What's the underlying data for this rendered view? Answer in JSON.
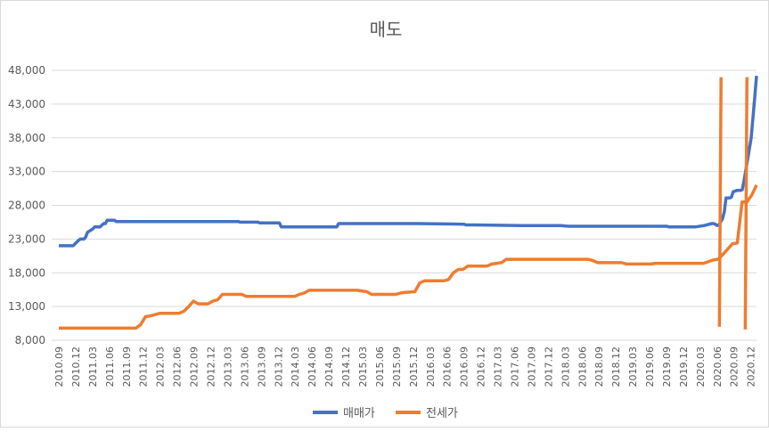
{
  "chart_data": {
    "type": "line",
    "title": "매도",
    "xlabel": "",
    "ylabel": "",
    "ylim": [
      8000,
      48000
    ],
    "yticks": [
      8000,
      13000,
      18000,
      23000,
      28000,
      33000,
      38000,
      43000,
      48000
    ],
    "ytick_labels": [
      "8,000",
      "13,000",
      "18,000",
      "23,000",
      "28,000",
      "33,000",
      "38,000",
      "43,000",
      "48,000"
    ],
    "x_start": "2010.09",
    "x_count": 125,
    "xtick_labels": [
      "2010.09",
      "2010.12",
      "2011.03",
      "2011.06",
      "2011.09",
      "2011.12",
      "2012.03",
      "2012.06",
      "2012.09",
      "2012.12",
      "2013.03",
      "2013.06",
      "2013.09",
      "2013.12",
      "2014.03",
      "2014.06",
      "2014.09",
      "2014.12",
      "2015.03",
      "2015.06",
      "2015.09",
      "2015.12",
      "2016.03",
      "2016.06",
      "2016.09",
      "2016.12",
      "2017.03",
      "2017.06",
      "2017.09",
      "2017.12",
      "2018.03",
      "2018.06",
      "2018.09",
      "2018.12",
      "2019.03",
      "2019.06",
      "2019.09",
      "2019.12",
      "2020.03",
      "2020.06",
      "2020.09",
      "2020.12"
    ],
    "legend": [
      "매매가",
      "전세가"
    ],
    "legend_position": "bottom",
    "grid": true,
    "series": [
      {
        "name": "매매가",
        "color": "#4472C4",
        "points": [
          [
            0,
            22000
          ],
          [
            8,
            22000
          ],
          [
            11,
            22800
          ],
          [
            12,
            23000
          ],
          [
            14,
            23000
          ],
          [
            15,
            23300
          ],
          [
            16,
            24000
          ],
          [
            19,
            24500
          ],
          [
            20,
            24800
          ],
          [
            23,
            24800
          ],
          [
            25,
            25300
          ],
          [
            26,
            25300
          ],
          [
            27,
            25800
          ],
          [
            31,
            25800
          ],
          [
            32,
            25600
          ],
          [
            100,
            25600
          ],
          [
            101,
            25500
          ],
          [
            103,
            25500
          ],
          [
            108,
            25500
          ],
          [
            111,
            25500
          ],
          [
            112,
            25400
          ],
          [
            123,
            25400
          ],
          [
            124,
            24800
          ],
          [
            130,
            24800
          ],
          [
            155,
            24800
          ],
          [
            156,
            25300
          ],
          [
            167,
            25300
          ],
          [
            200,
            25300
          ],
          [
            226,
            25200
          ],
          [
            227,
            25100
          ],
          [
            231,
            25100
          ],
          [
            258,
            25000
          ],
          [
            270,
            25000
          ],
          [
            280,
            25000
          ],
          [
            284,
            24900
          ],
          [
            300,
            24900
          ],
          [
            339,
            24900
          ],
          [
            340,
            24800
          ],
          [
            350,
            24800
          ],
          [
            355,
            24800
          ],
          [
            360,
            25000
          ],
          [
            364,
            25300
          ],
          [
            365,
            25300
          ],
          [
            366,
            25200
          ],
          [
            367,
            25000
          ],
          [
            368,
            25100
          ],
          [
            370,
            26000
          ],
          [
            371,
            27000
          ],
          [
            372,
            29100
          ],
          [
            374,
            29100
          ],
          [
            375,
            29200
          ],
          [
            376,
            30000
          ],
          [
            378,
            30200
          ],
          [
            379,
            30200
          ],
          [
            380,
            30200
          ],
          [
            381,
            30300
          ],
          [
            382,
            31600
          ],
          [
            384,
            34700
          ],
          [
            386,
            38000
          ],
          [
            388,
            44000
          ],
          [
            389,
            47200
          ]
        ]
      },
      {
        "name": "전세가",
        "color": "#ED7D31",
        "points": [
          [
            0,
            9800
          ],
          [
            16,
            9800
          ],
          [
            17,
            10300
          ],
          [
            18,
            11500
          ],
          [
            19,
            11600
          ],
          [
            20,
            11800
          ],
          [
            21,
            12000
          ],
          [
            25,
            12000
          ],
          [
            26,
            12300
          ],
          [
            27,
            13000
          ],
          [
            28,
            13800
          ],
          [
            29,
            13400
          ],
          [
            30,
            13400
          ],
          [
            31,
            13400
          ],
          [
            32,
            13800
          ],
          [
            33,
            14000
          ],
          [
            34,
            14800
          ],
          [
            38,
            14800
          ],
          [
            39,
            14500
          ],
          [
            49,
            14500
          ],
          [
            50,
            14800
          ],
          [
            51,
            15000
          ],
          [
            52,
            15400
          ],
          [
            62,
            15400
          ],
          [
            64,
            15200
          ],
          [
            65,
            14800
          ],
          [
            70,
            14800
          ],
          [
            71,
            15000
          ],
          [
            72,
            15100
          ],
          [
            74,
            15200
          ],
          [
            75,
            16500
          ],
          [
            76,
            16800
          ],
          [
            80,
            16800
          ],
          [
            81,
            17000
          ],
          [
            82,
            18000
          ],
          [
            83,
            18500
          ],
          [
            84,
            18500
          ],
          [
            85,
            19000
          ],
          [
            89,
            19000
          ],
          [
            90,
            19300
          ],
          [
            92,
            19500
          ],
          [
            93,
            20000
          ],
          [
            110,
            20000
          ],
          [
            111,
            19800
          ],
          [
            112,
            19500
          ],
          [
            115,
            19500
          ],
          [
            117,
            19500
          ],
          [
            118,
            19300
          ],
          [
            123,
            19300
          ],
          [
            124,
            19400
          ],
          [
            130,
            19400
          ],
          [
            134,
            19400
          ],
          [
            136,
            19900
          ],
          [
            137,
            20000
          ],
          [
            138,
            20700
          ],
          [
            139,
            21500
          ],
          [
            140,
            22300
          ],
          [
            141,
            22400
          ],
          [
            142,
            28500
          ],
          [
            143,
            28500
          ],
          [
            144,
            29500
          ],
          [
            145,
            31000
          ]
        ]
      }
    ],
    "artifacts": [
      {
        "series": "전세가",
        "color": "#ED7D31",
        "x_start_index": 117.4,
        "x_end_index": 117.7,
        "y_from": 10000,
        "y_to": 47000
      },
      {
        "series": "전세가",
        "color": "#ED7D31",
        "x_start_index": 122.0,
        "x_end_index": 122.3,
        "y_from": 9600,
        "y_to": 47000
      }
    ]
  }
}
